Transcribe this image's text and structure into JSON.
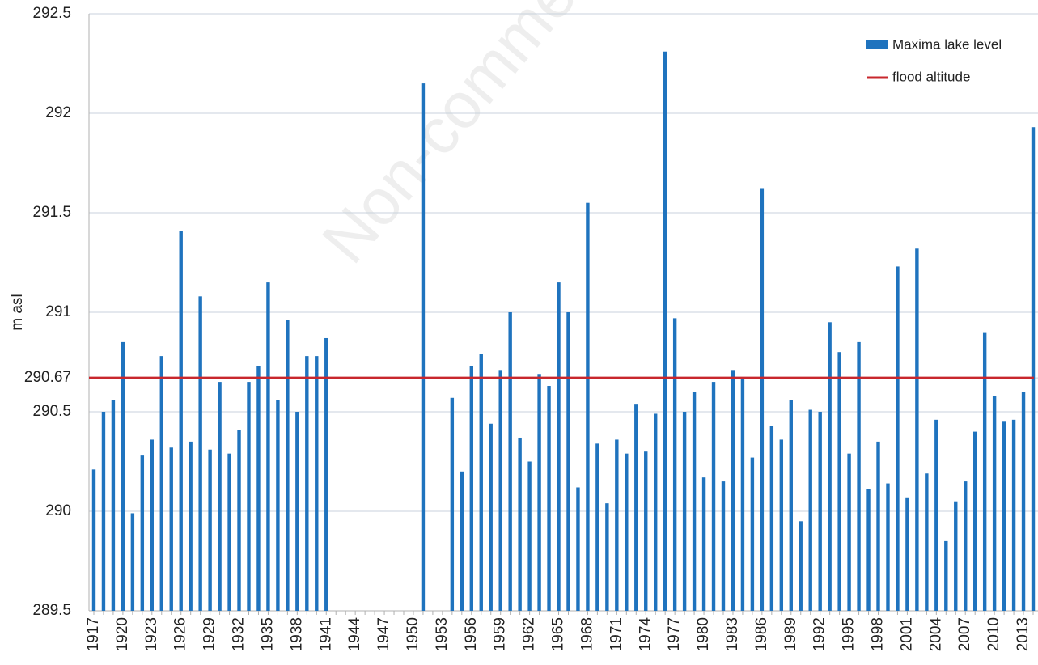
{
  "chart_data": {
    "type": "bar",
    "y_label": "m asl",
    "watermark": "Non-comme",
    "categories": [
      "1917",
      null,
      null,
      "1920",
      null,
      null,
      "1923",
      null,
      null,
      "1926",
      null,
      null,
      "1929",
      null,
      null,
      "1932",
      null,
      null,
      "1935",
      null,
      null,
      "1938",
      null,
      null,
      "1941",
      null,
      null,
      "1944",
      null,
      null,
      "1947",
      null,
      null,
      "1950",
      null,
      null,
      "1953",
      null,
      null,
      "1956",
      null,
      null,
      "1959",
      null,
      null,
      "1962",
      null,
      null,
      "1965",
      null,
      null,
      "1968",
      null,
      null,
      "1971",
      null,
      null,
      "1974",
      null,
      null,
      "1977",
      null,
      null,
      "1980",
      null,
      null,
      "1983",
      null,
      null,
      "1986",
      null,
      null,
      "1989",
      null,
      null,
      "1992",
      null,
      null,
      "1995",
      null,
      null,
      "1998",
      null,
      null,
      "2001",
      null,
      null,
      "2004",
      null,
      null,
      "2007",
      null,
      null,
      "2010",
      null,
      null,
      "2013",
      null
    ],
    "series": [
      {
        "name": "Maxima lake level",
        "color": "#1f73be",
        "values": [
          290.21,
          290.5,
          290.56,
          290.85,
          289.99,
          290.28,
          290.36,
          290.78,
          290.32,
          291.41,
          290.35,
          291.08,
          290.31,
          290.65,
          290.29,
          290.41,
          290.65,
          290.73,
          291.15,
          290.56,
          290.96,
          290.5,
          290.78,
          290.78,
          290.87,
          null,
          null,
          null,
          null,
          null,
          null,
          null,
          null,
          null,
          292.15,
          null,
          null,
          290.57,
          290.2,
          290.73,
          290.79,
          290.44,
          290.71,
          291.0,
          290.37,
          290.25,
          290.69,
          290.63,
          291.15,
          291.0,
          290.12,
          291.55,
          290.34,
          290.04,
          290.36,
          290.29,
          290.54,
          290.3,
          290.49,
          292.31,
          290.97,
          290.5,
          290.6,
          290.17,
          290.65,
          290.15,
          290.71,
          290.67,
          290.27,
          291.62,
          290.43,
          290.36,
          290.56,
          289.95,
          290.51,
          290.5,
          290.95,
          290.8,
          290.29,
          290.85,
          290.11,
          290.35,
          290.14,
          291.23,
          290.07,
          291.32,
          290.19,
          290.46,
          289.85,
          290.05,
          290.15,
          290.4,
          290.9,
          290.58,
          290.45,
          290.46,
          290.6,
          291.93
        ]
      }
    ],
    "flood_altitude": {
      "name": "flood altitude",
      "color": "#c8272d",
      "value": 290.67
    },
    "ylim": [
      289.5,
      292.5
    ],
    "yticks": [
      289.5,
      290,
      290.5,
      290.67,
      291,
      291.5,
      292,
      292.5
    ],
    "grid": true
  }
}
